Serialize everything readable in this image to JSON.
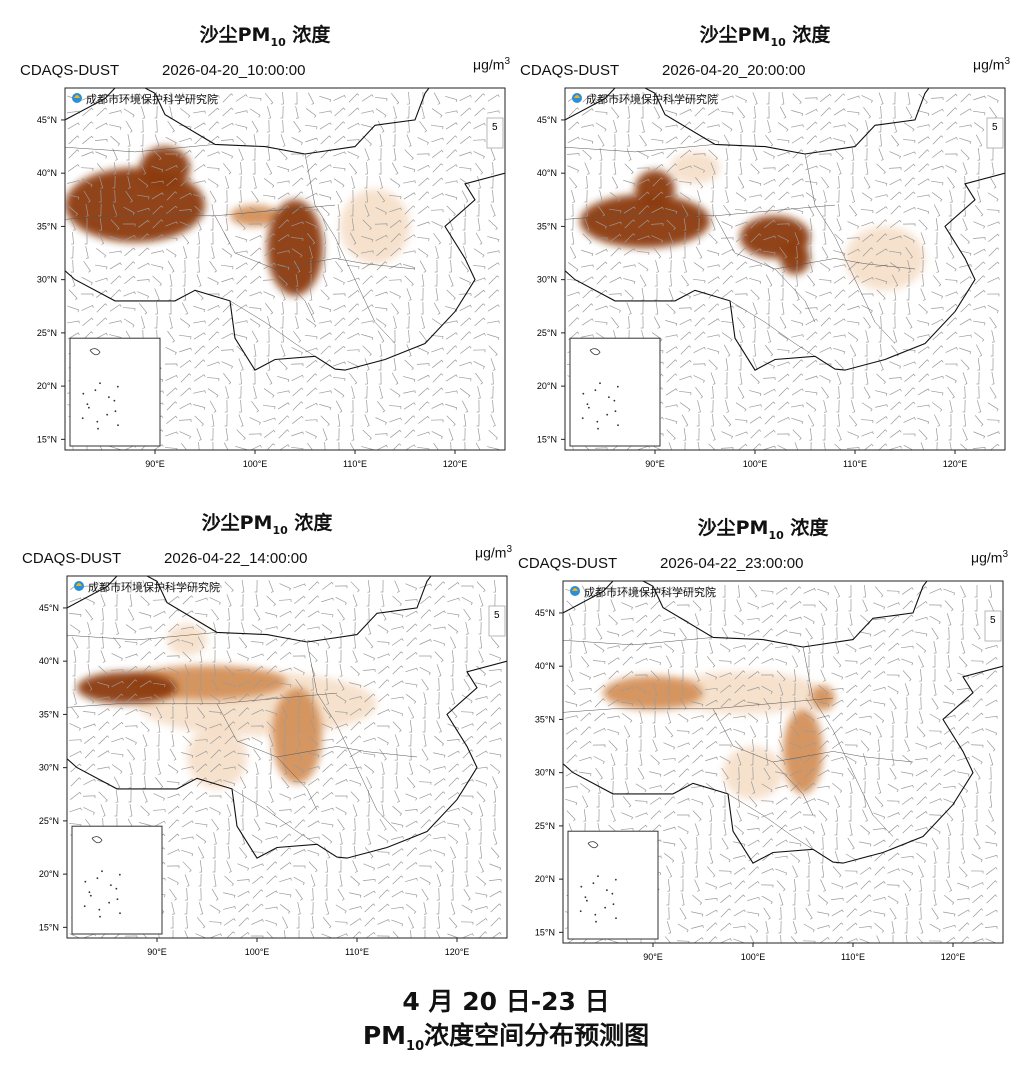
{
  "panels": [
    {
      "title_main": "沙尘PM",
      "title_sub": "10",
      "title_suffix": " 浓度",
      "model": "CDAQS-DUST",
      "datetime": "2026-04-20_10:00:00",
      "plumes": [
        {
          "lon": 88,
          "lat": 37,
          "rx": 7,
          "ry": 3.5,
          "level": 3
        },
        {
          "lon": 91,
          "lat": 40.5,
          "rx": 2.5,
          "ry": 2,
          "level": 3
        },
        {
          "lon": 104,
          "lat": 33,
          "rx": 2.8,
          "ry": 4.5,
          "level": 3
        },
        {
          "lon": 100,
          "lat": 36,
          "rx": 2.5,
          "ry": 1,
          "level": 2
        },
        {
          "lon": 112,
          "lat": 35,
          "rx": 3.5,
          "ry": 3.5,
          "level": 1
        }
      ]
    },
    {
      "title_main": "沙尘PM",
      "title_sub": "10",
      "title_suffix": " 浓度",
      "model": "CDAQS-DUST",
      "datetime": "2026-04-20_20:00:00",
      "plumes": [
        {
          "lon": 89,
          "lat": 35.5,
          "rx": 6.5,
          "ry": 2.5,
          "level": 3
        },
        {
          "lon": 90,
          "lat": 38.5,
          "rx": 2,
          "ry": 1.8,
          "level": 3
        },
        {
          "lon": 102,
          "lat": 34,
          "rx": 3.5,
          "ry": 2,
          "level": 3
        },
        {
          "lon": 104,
          "lat": 32,
          "rx": 1.5,
          "ry": 1.5,
          "level": 3
        },
        {
          "lon": 113,
          "lat": 32,
          "rx": 4,
          "ry": 3,
          "level": 1
        },
        {
          "lon": 94,
          "lat": 40.5,
          "rx": 2.5,
          "ry": 1.5,
          "level": 1
        }
      ]
    },
    {
      "title_main": "沙尘PM",
      "title_sub": "10",
      "title_suffix": " 浓度",
      "model": "CDAQS-DUST",
      "datetime": "2026-04-22_14:00:00",
      "plumes": [
        {
          "lon": 87,
          "lat": 37.5,
          "rx": 5,
          "ry": 1.5,
          "level": 3
        },
        {
          "lon": 95,
          "lat": 38,
          "rx": 8,
          "ry": 1.6,
          "level": 2
        },
        {
          "lon": 104,
          "lat": 33,
          "rx": 2.5,
          "ry": 4.5,
          "level": 2
        },
        {
          "lon": 100,
          "lat": 36,
          "rx": 12,
          "ry": 3,
          "level": 1
        },
        {
          "lon": 96,
          "lat": 31,
          "rx": 3,
          "ry": 3,
          "level": 1
        },
        {
          "lon": 93,
          "lat": 42,
          "rx": 2,
          "ry": 1.5,
          "level": 1
        }
      ]
    },
    {
      "title_main": "沙尘PM",
      "title_sub": "10",
      "title_suffix": " 浓度",
      "model": "CDAQS-DUST",
      "datetime": "2026-04-22_23:00:00",
      "plumes": [
        {
          "lon": 90,
          "lat": 37.5,
          "rx": 5,
          "ry": 1.6,
          "level": 2
        },
        {
          "lon": 99,
          "lat": 37.5,
          "rx": 8,
          "ry": 2,
          "level": 1
        },
        {
          "lon": 105,
          "lat": 32,
          "rx": 2,
          "ry": 4,
          "level": 2
        },
        {
          "lon": 107,
          "lat": 37,
          "rx": 1.2,
          "ry": 1.2,
          "level": 2
        },
        {
          "lon": 100,
          "lat": 30,
          "rx": 3,
          "ry": 2.5,
          "level": 1
        }
      ]
    }
  ],
  "map": {
    "logo_text": "成都市环境保护科学研究院",
    "scale_value": "5",
    "unit": "μg/m",
    "unit_sup": "3",
    "lat_labels": [
      "45°N",
      "40°N",
      "35°N",
      "30°N",
      "25°N",
      "20°N",
      "15°N"
    ],
    "lon_labels": [
      "90°E",
      "100°E",
      "110°E",
      "120°E"
    ],
    "lon_range": [
      81,
      125
    ],
    "lat_range": [
      14,
      48
    ],
    "colors": {
      "level1": "#f5dcc4",
      "level2": "#d4915a",
      "level3": "#8c3a0c",
      "border": "#111111",
      "wind": "#9a9a9a",
      "frame": "#222222"
    }
  },
  "caption": {
    "line1": "4 月 20 日-23 日",
    "line2_main": "PM",
    "line2_sub": "10",
    "line2_suffix": "浓度空间分布预测图"
  }
}
